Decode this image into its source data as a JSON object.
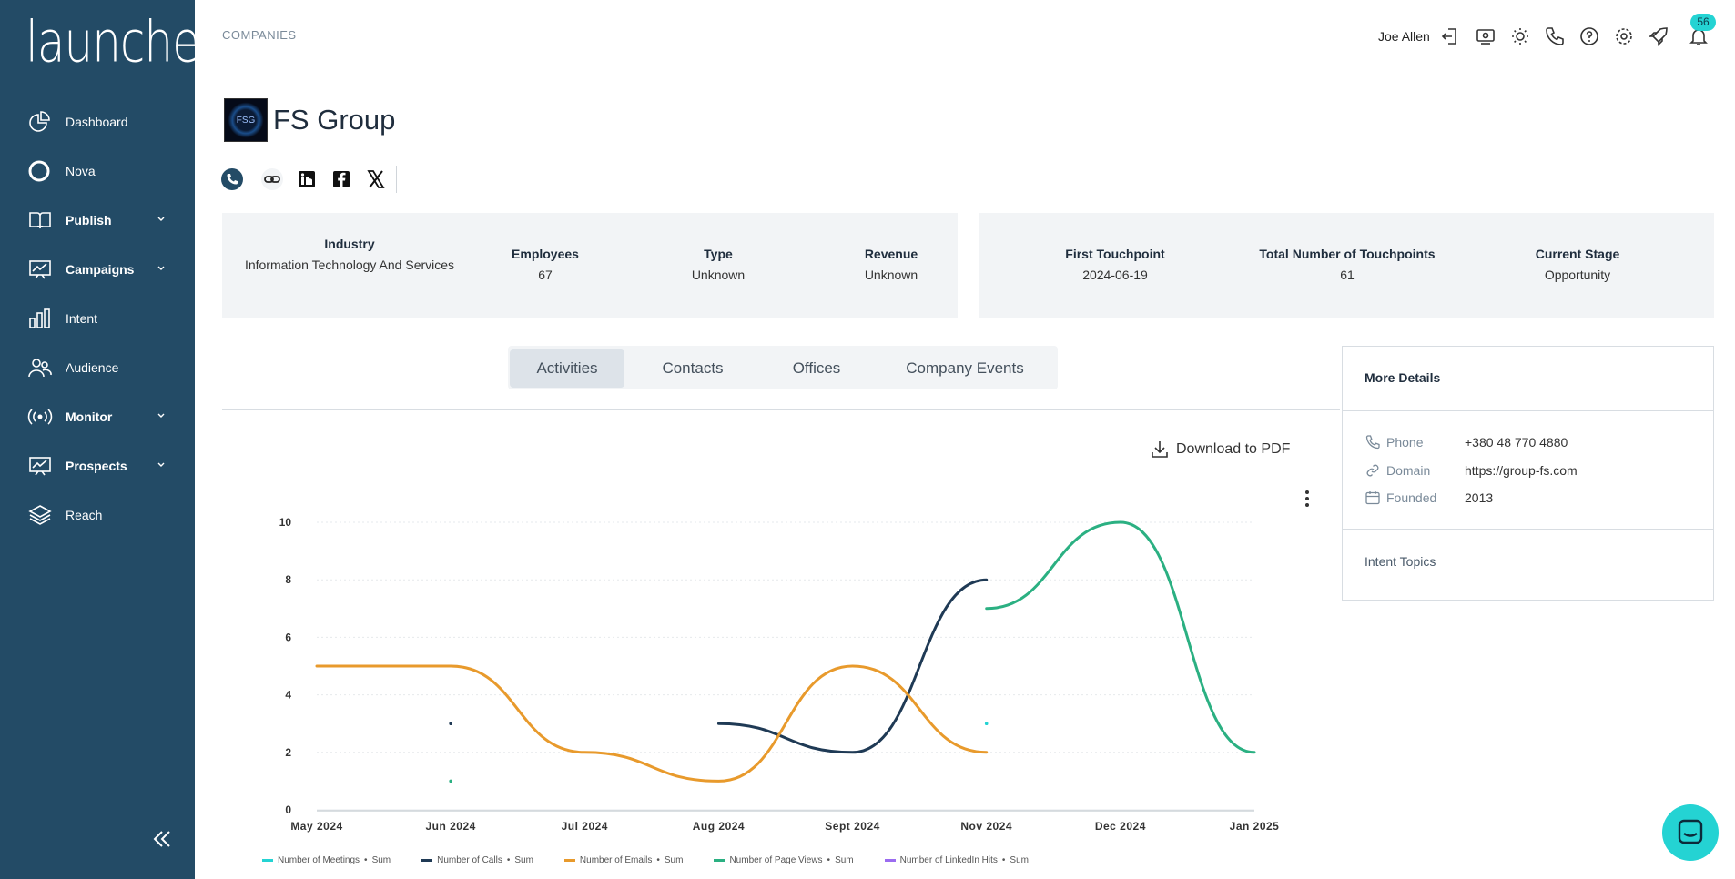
{
  "app": {
    "logo_text": "launched"
  },
  "sidebar": {
    "items": [
      {
        "label": "Dashboard",
        "icon": "pie-chart-icon",
        "bold": false,
        "chevron": false
      },
      {
        "label": "Nova",
        "icon": "ring-icon",
        "bold": false,
        "chevron": false
      },
      {
        "label": "Publish",
        "icon": "book-icon",
        "bold": true,
        "chevron": true
      },
      {
        "label": "Campaigns",
        "icon": "presentation-chart-icon",
        "bold": true,
        "chevron": true
      },
      {
        "label": "Intent",
        "icon": "bar-chart-icon",
        "bold": false,
        "chevron": false
      },
      {
        "label": "Audience",
        "icon": "users-icon",
        "bold": false,
        "chevron": false
      },
      {
        "label": "Monitor",
        "icon": "broadcast-icon",
        "bold": true,
        "chevron": true
      },
      {
        "label": "Prospects",
        "icon": "presentation-chart-icon",
        "bold": true,
        "chevron": true
      },
      {
        "label": "Reach",
        "icon": "layers-icon",
        "bold": false,
        "chevron": false
      }
    ]
  },
  "header": {
    "breadcrumb": "COMPANIES",
    "user_name": "Joe Allen",
    "notification_count": "56"
  },
  "company": {
    "logo_text": "FSG",
    "name": "FS Group",
    "stats_left": [
      {
        "key": "Industry",
        "value": "Information Technology And Services"
      },
      {
        "key": "Employees",
        "value": "67"
      },
      {
        "key": "Type",
        "value": "Unknown"
      },
      {
        "key": "Revenue",
        "value": "Unknown"
      }
    ],
    "stats_right": [
      {
        "key": "First Touchpoint",
        "value": "2024-06-19"
      },
      {
        "key": "Total Number of Touchpoints",
        "value": "61"
      },
      {
        "key": "Current Stage",
        "value": "Opportunity"
      }
    ]
  },
  "tabs": [
    "Activities",
    "Contacts",
    "Offices",
    "Company Events"
  ],
  "active_tab": "Activities",
  "download_label": "Download to PDF",
  "details": {
    "title": "More Details",
    "phone_label": "Phone",
    "phone_value": "+380 48 770 4880",
    "domain_label": "Domain",
    "domain_value": "https://group-fs.com",
    "founded_label": "Founded",
    "founded_value": "2013",
    "intent_title": "Intent Topics"
  },
  "colors": {
    "sidebar": "#234b66",
    "meetings": "#24d3d3",
    "calls": "#1f3a55",
    "emails": "#e89a2c",
    "page_views": "#2bb082",
    "linkedin": "#9b6cf0"
  },
  "chart_data": {
    "type": "line",
    "categories": [
      "May 2024",
      "Jun 2024",
      "Jul 2024",
      "Aug 2024",
      "Sept 2024",
      "Nov 2024",
      "Dec 2024",
      "Jan 2025"
    ],
    "ylim": [
      0,
      10
    ],
    "yticks": [
      "0",
      "2",
      "4",
      "6",
      "8",
      "10"
    ],
    "series": [
      {
        "name": "Number of Meetings",
        "agg": "Sum",
        "color": "#24d3d3",
        "values": [
          null,
          null,
          null,
          null,
          null,
          3,
          null,
          null
        ]
      },
      {
        "name": "Number of Calls",
        "agg": "Sum",
        "color": "#1f3a55",
        "values": [
          null,
          3,
          null,
          3,
          2,
          8,
          null,
          null
        ]
      },
      {
        "name": "Number of Emails",
        "agg": "Sum",
        "color": "#e89a2c",
        "values": [
          5,
          5,
          2,
          1,
          5,
          2,
          null,
          null
        ]
      },
      {
        "name": "Number of Page Views",
        "agg": "Sum",
        "color": "#2bb082",
        "values": [
          null,
          1,
          null,
          null,
          null,
          7,
          10,
          2
        ]
      },
      {
        "name": "Number of LinkedIn Hits",
        "agg": "Sum",
        "color": "#9b6cf0",
        "values": [
          null,
          null,
          null,
          null,
          null,
          null,
          null,
          null
        ]
      }
    ]
  }
}
